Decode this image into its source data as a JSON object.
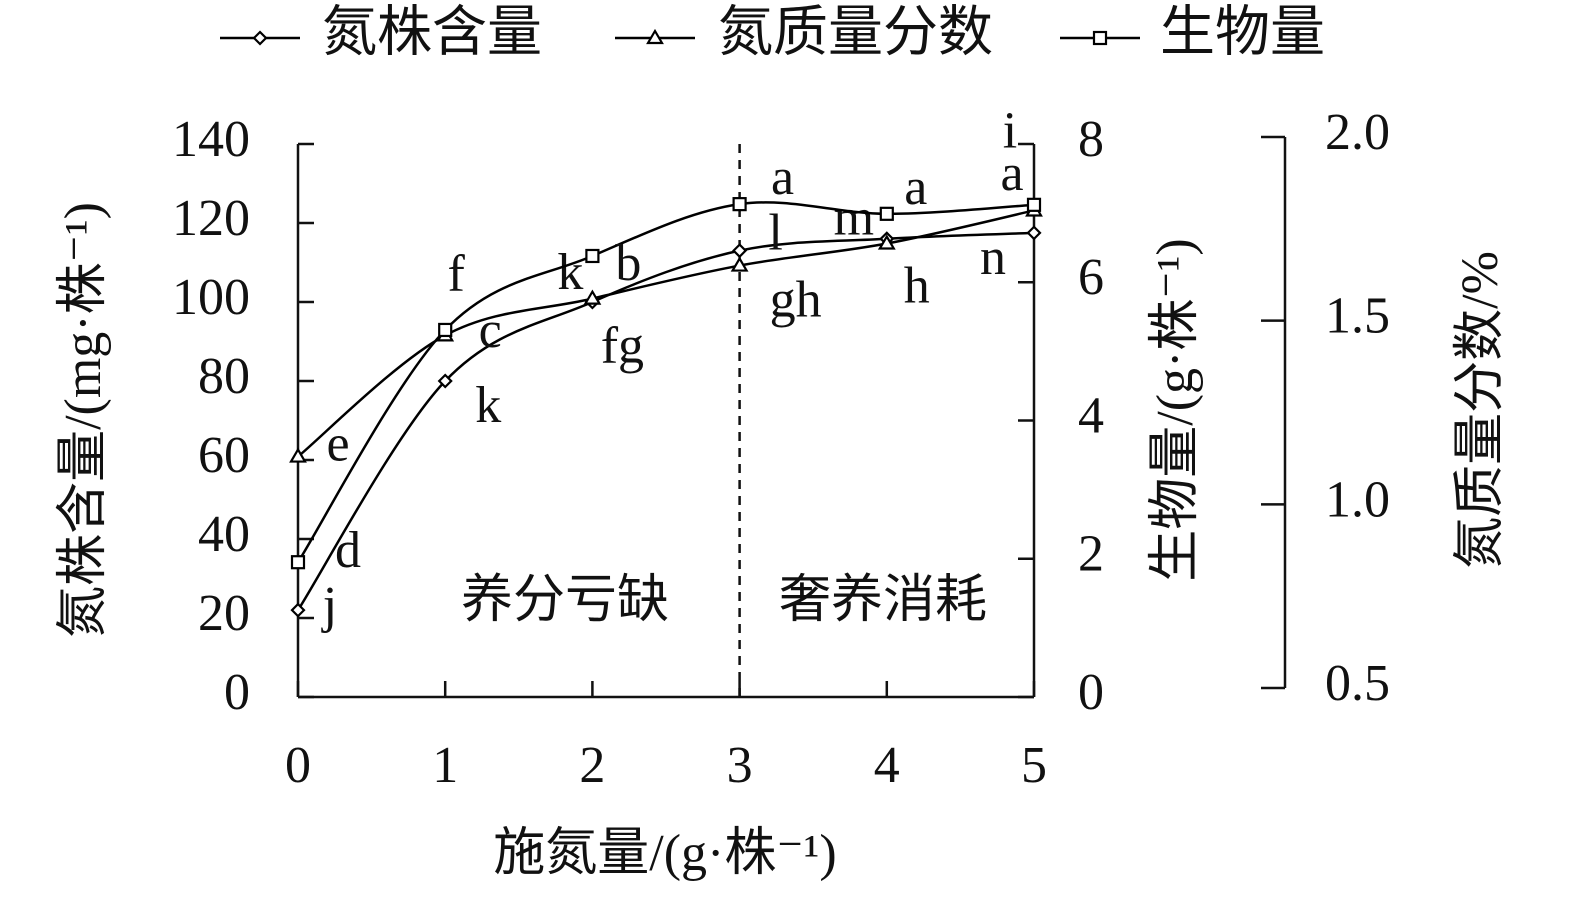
{
  "chart_data": {
    "type": "line",
    "x_label": "施氮量/(g·株⁻¹)",
    "y_label": "氮株含量/(mg·株⁻¹)",
    "y2_label": "生物量/(g·株⁻¹)",
    "y3_label": "氮质量分数/%",
    "x": [
      0,
      1,
      2,
      3,
      4,
      5
    ],
    "xlim": [
      0,
      5
    ],
    "xticks": [
      0,
      1,
      2,
      3,
      4,
      5
    ],
    "ylim": [
      0,
      140
    ],
    "yticks": [
      0,
      20,
      40,
      60,
      80,
      100,
      120,
      140
    ],
    "y2lim": [
      0,
      8
    ],
    "y2ticks": [
      0,
      2,
      4,
      6,
      8
    ],
    "y3lim": [
      0.5,
      2.0
    ],
    "y3ticks": [
      0.5,
      {
        "value": 1.0,
        "label": "1.0"
      },
      1.5,
      {
        "value": 2.0,
        "label": "2.0"
      }
    ],
    "divider_x": 3,
    "regions": [
      "养分亏缺",
      "奢养消耗"
    ],
    "series": [
      {
        "name": "氮株含量",
        "color": "#000000",
        "marker": "diamond",
        "values": [
          22,
          80,
          100,
          113,
          116,
          117.5
        ],
        "labels": [
          "j",
          "k",
          "k",
          "l",
          "m",
          "n"
        ]
      },
      {
        "name": "氮质量分数",
        "color": "#000000",
        "marker": "triangle",
        "axis": "y3",
        "values": [
          1.13,
          1.46,
          1.56,
          1.65,
          1.71,
          1.8
        ],
        "labels": [
          "e",
          "f",
          "fg",
          "gh",
          "h",
          "i"
        ]
      },
      {
        "name": "生物量",
        "color": "#000000",
        "marker": "square",
        "axis": "y2",
        "values": [
          1.95,
          5.31,
          6.38,
          7.13,
          6.99,
          7.12
        ],
        "labels": [
          "d",
          "c",
          "b",
          "a",
          "a",
          "a"
        ]
      }
    ]
  }
}
